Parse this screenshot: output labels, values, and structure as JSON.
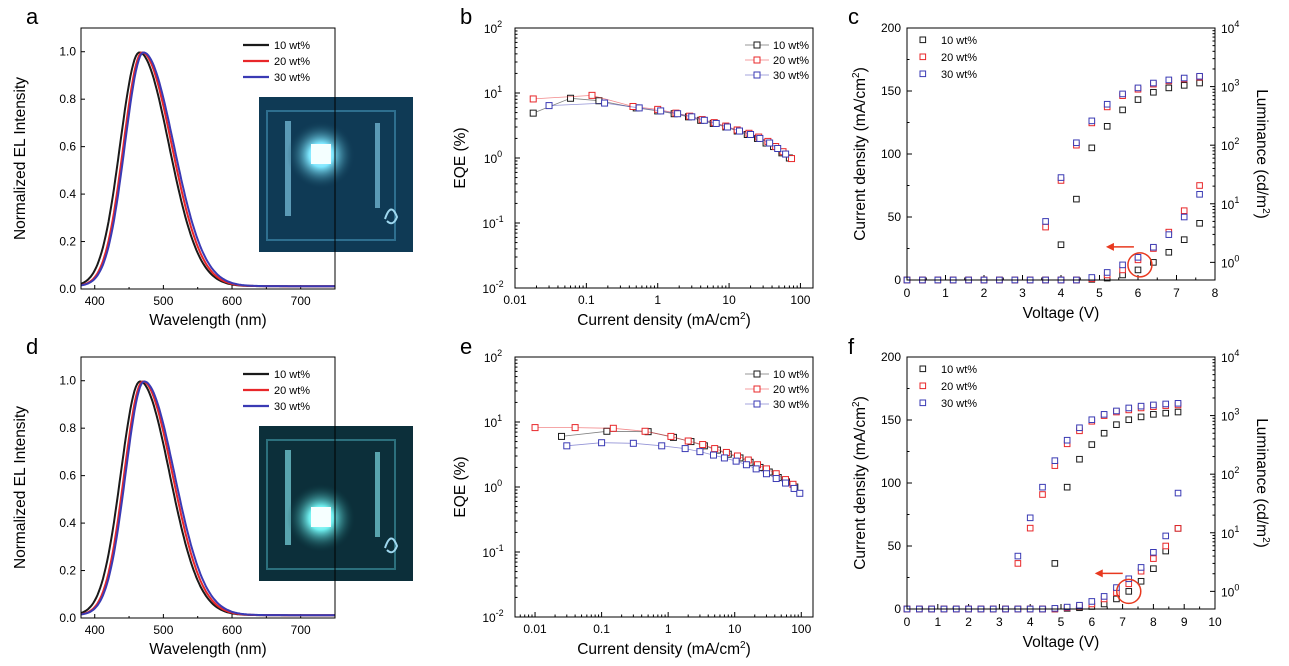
{
  "colors": {
    "s10": "#1a1a1a",
    "s20": "#e8272a",
    "s30": "#3a3ab4",
    "annotation": "#e8391f"
  },
  "chart_data": [
    {
      "panel": "a",
      "type": "line",
      "xlabel": "Wavelength (nm)",
      "ylabel": "Normalized EL Intensity",
      "xlim": [
        380,
        750
      ],
      "ylim": [
        0,
        1.1
      ],
      "xticks": [
        "400",
        "500",
        "600",
        "700"
      ],
      "yticks": [
        "0.0",
        "0.2",
        "0.4",
        "0.6",
        "0.8",
        "1.0"
      ],
      "legend_position": "top-right",
      "inset": "device-photo",
      "series": [
        {
          "name": "10 wt%",
          "color": "#1a1a1a",
          "peak": 465,
          "sigma_left": 28,
          "sigma_right": 43
        },
        {
          "name": "20 wt%",
          "color": "#e8272a",
          "peak": 469,
          "sigma_left": 27,
          "sigma_right": 43
        },
        {
          "name": "30 wt%",
          "color": "#3a3ab4",
          "peak": 471,
          "sigma_left": 27,
          "sigma_right": 44
        }
      ]
    },
    {
      "panel": "b",
      "type": "line",
      "xlabel": "Current density (mA/cm",
      "xlabel_sup": "2",
      "xlabel_end": ")",
      "ylabel": "EQE (%)",
      "xscale": "log",
      "yscale": "log",
      "xlim": [
        0.01,
        150
      ],
      "ylim": [
        0.01,
        100
      ],
      "xticks": [
        "0.01",
        "0.1",
        "1",
        "10",
        "100"
      ],
      "yticks_base": [
        "10",
        "10",
        "10",
        "10",
        "10"
      ],
      "yticks_exp": [
        "-2",
        "-1",
        "0",
        "1",
        "2"
      ],
      "legend_position": "top-right",
      "series": [
        {
          "name": "10 wt%",
          "color": "#1a1a1a",
          "x": [
            0.018,
            0.06,
            0.15,
            0.5,
            1,
            1.7,
            2.7,
            4,
            6,
            9,
            13,
            18,
            25,
            33,
            42,
            55,
            70
          ],
          "y": [
            4.9,
            8.3,
            7.6,
            5.9,
            5.3,
            4.8,
            4.3,
            3.8,
            3.4,
            3.0,
            2.6,
            2.3,
            2.0,
            1.7,
            1.5,
            1.2,
            1.0
          ]
        },
        {
          "name": "20 wt%",
          "color": "#e8272a",
          "x": [
            0.018,
            0.12,
            0.45,
            1,
            1.8,
            2.8,
            4.2,
            6.2,
            9,
            13,
            19,
            26,
            35,
            45,
            57,
            75
          ],
          "y": [
            8.1,
            9.2,
            6.2,
            5.6,
            4.9,
            4.4,
            3.9,
            3.5,
            3.1,
            2.7,
            2.4,
            2.1,
            1.8,
            1.5,
            1.25,
            0.98
          ]
        },
        {
          "name": "30 wt%",
          "color": "#3a3ab4",
          "x": [
            0.03,
            0.18,
            0.55,
            1.1,
            1.9,
            3,
            4.5,
            6.6,
            9.5,
            14,
            20,
            27,
            37,
            48,
            62
          ],
          "y": [
            6.4,
            7.0,
            5.9,
            5.3,
            4.8,
            4.3,
            3.8,
            3.4,
            3.0,
            2.6,
            2.3,
            2.0,
            1.7,
            1.4,
            1.15
          ]
        }
      ]
    },
    {
      "panel": "c",
      "type": "scatter",
      "xlabel": "Voltage (V)",
      "ylabel": "Current density (mA/cm",
      "ylabel_sup": "2",
      "ylabel_end": ")",
      "y2label": "Luminance (cd/m",
      "y2label_sup": "2",
      "y2label_end": ")",
      "xlim": [
        0,
        8
      ],
      "ylim": [
        0,
        200
      ],
      "y2scale": "log",
      "y2lim": [
        0.5,
        10000
      ],
      "xticks": [
        "0",
        "1",
        "2",
        "3",
        "4",
        "5",
        "6",
        "7",
        "8"
      ],
      "yticks": [
        "0",
        "50",
        "100",
        "150",
        "200"
      ],
      "y2ticks_base": [
        "10",
        "10",
        "10",
        "10",
        "10"
      ],
      "y2ticks_exp": [
        "0",
        "1",
        "2",
        "3",
        "4"
      ],
      "legend_position": "top-left",
      "arrow_annotation": "circle with arrow pointing to current density axis",
      "series": [
        {
          "name": "10 wt%",
          "color": "#1a1a1a",
          "x": [
            0,
            0.4,
            0.8,
            1.2,
            1.6,
            2,
            2.4,
            2.8,
            3.2,
            3.6,
            4,
            4.4,
            4.8,
            5.2,
            5.6,
            6,
            6.4,
            6.8,
            7.2,
            7.6
          ],
          "current": [
            0,
            0,
            0,
            0,
            0,
            0,
            0,
            0,
            0,
            0,
            0,
            0,
            0.5,
            1.5,
            4,
            8,
            14,
            22,
            32,
            45
          ],
          "luminance": [
            null,
            null,
            null,
            null,
            null,
            null,
            null,
            null,
            null,
            null,
            2,
            12,
            90,
            210,
            400,
            600,
            800,
            950,
            1050,
            1150
          ]
        },
        {
          "name": "20 wt%",
          "color": "#e8272a",
          "x": [
            0,
            0.4,
            0.8,
            1.2,
            1.6,
            2,
            2.4,
            2.8,
            3.2,
            3.6,
            4,
            4.4,
            4.8,
            5.2,
            5.6,
            6,
            6.4,
            6.8,
            7.2,
            7.6
          ],
          "current": [
            0,
            0,
            0,
            0,
            0,
            0,
            0,
            0,
            0,
            0,
            0,
            0,
            1,
            4,
            8,
            16,
            25,
            38,
            55,
            75
          ],
          "luminance": [
            null,
            null,
            null,
            null,
            null,
            null,
            null,
            null,
            null,
            4,
            25,
            100,
            240,
            450,
            700,
            900,
            1100,
            1250,
            1350,
            1450
          ]
        },
        {
          "name": "30 wt%",
          "color": "#3a3ab4",
          "x": [
            0,
            0.4,
            0.8,
            1.2,
            1.6,
            2,
            2.4,
            2.8,
            3.2,
            3.6,
            4,
            4.4,
            4.8,
            5.2,
            5.6,
            6,
            6.4,
            6.8,
            7.2,
            7.6
          ],
          "current": [
            0,
            0,
            0,
            0,
            0,
            0,
            0,
            0,
            0,
            0,
            0,
            0,
            2,
            6,
            12,
            18,
            26,
            36,
            50,
            68
          ],
          "luminance": [
            null,
            null,
            null,
            null,
            null,
            null,
            null,
            null,
            null,
            5,
            28,
            110,
            260,
            500,
            750,
            950,
            1150,
            1300,
            1400,
            1500
          ]
        }
      ]
    },
    {
      "panel": "d",
      "type": "line",
      "xlabel": "Wavelength (nm)",
      "ylabel": "Normalized EL Intensity",
      "xlim": [
        380,
        750
      ],
      "ylim": [
        0,
        1.1
      ],
      "xticks": [
        "400",
        "500",
        "600",
        "700"
      ],
      "yticks": [
        "0.0",
        "0.2",
        "0.4",
        "0.6",
        "0.8",
        "1.0"
      ],
      "legend_position": "top-right",
      "inset": "device-photo",
      "series": [
        {
          "name": "10 wt%",
          "color": "#1a1a1a",
          "peak": 466,
          "sigma_left": 28,
          "sigma_right": 43
        },
        {
          "name": "20 wt%",
          "color": "#e8272a",
          "peak": 470,
          "sigma_left": 27,
          "sigma_right": 43
        },
        {
          "name": "30 wt%",
          "color": "#3a3ab4",
          "peak": 472,
          "sigma_left": 27,
          "sigma_right": 44
        }
      ]
    },
    {
      "panel": "e",
      "type": "line",
      "xlabel": "Current density (mA/cm",
      "xlabel_sup": "2",
      "xlabel_end": ")",
      "ylabel": "EQE (%)",
      "xscale": "log",
      "yscale": "log",
      "xlim": [
        0.005,
        150
      ],
      "ylim": [
        0.01,
        100
      ],
      "xticks": [
        "0.01",
        "0.1",
        "1",
        "10",
        "100"
      ],
      "yticks_base": [
        "10",
        "10",
        "10",
        "10",
        "10"
      ],
      "yticks_exp": [
        "-2",
        "-1",
        "0",
        "1",
        "2"
      ],
      "legend_position": "top-right",
      "series": [
        {
          "name": "10 wt%",
          "color": "#1a1a1a",
          "x": [
            0.025,
            0.12,
            0.5,
            1.2,
            2.2,
            3.5,
            5.5,
            8,
            12,
            17,
            24,
            33,
            45,
            60,
            80
          ],
          "y": [
            6.0,
            7.2,
            7.1,
            5.8,
            5.0,
            4.3,
            3.7,
            3.2,
            2.8,
            2.4,
            2.0,
            1.7,
            1.4,
            1.2,
            1.0
          ]
        },
        {
          "name": "20 wt%",
          "color": "#e8272a",
          "x": [
            0.01,
            0.04,
            0.15,
            0.45,
            1.1,
            2,
            3.3,
            5,
            7.5,
            11,
            16,
            22,
            30,
            42,
            58,
            75
          ],
          "y": [
            8.2,
            8.2,
            8.0,
            7.2,
            6.0,
            5.1,
            4.5,
            3.9,
            3.4,
            3.0,
            2.6,
            2.2,
            1.9,
            1.6,
            1.3,
            1.1
          ]
        },
        {
          "name": "30 wt%",
          "color": "#3a3ab4",
          "x": [
            0.03,
            0.1,
            0.3,
            0.8,
            1.8,
            3,
            4.8,
            7,
            10.5,
            15,
            21,
            30,
            42,
            58,
            78,
            95
          ],
          "y": [
            4.3,
            4.8,
            4.7,
            4.3,
            3.9,
            3.5,
            3.1,
            2.8,
            2.5,
            2.2,
            1.9,
            1.6,
            1.35,
            1.15,
            0.95,
            0.8
          ]
        }
      ]
    },
    {
      "panel": "f",
      "type": "scatter",
      "xlabel": "Voltage (V)",
      "ylabel": "Current density (mA/cm",
      "ylabel_sup": "2",
      "ylabel_end": ")",
      "y2label": "Luminance (cd/m",
      "y2label_sup": "2",
      "y2label_end": ")",
      "xlim": [
        0,
        10
      ],
      "ylim": [
        0,
        200
      ],
      "y2scale": "log",
      "y2lim": [
        0.5,
        10000
      ],
      "xticks": [
        "0",
        "1",
        "2",
        "3",
        "4",
        "5",
        "6",
        "7",
        "8",
        "9",
        "10"
      ],
      "yticks": [
        "0",
        "50",
        "100",
        "150",
        "200"
      ],
      "y2ticks_base": [
        "10",
        "10",
        "10",
        "10",
        "10"
      ],
      "y2ticks_exp": [
        "0",
        "1",
        "2",
        "3",
        "4"
      ],
      "legend_position": "top-left",
      "arrow_annotation": "circle with arrow pointing to current density axis",
      "series": [
        {
          "name": "10 wt%",
          "color": "#1a1a1a",
          "x": [
            0,
            0.4,
            0.8,
            1.2,
            1.6,
            2,
            2.4,
            2.8,
            3.2,
            3.6,
            4,
            4.4,
            4.8,
            5.2,
            5.6,
            6,
            6.4,
            6.8,
            7.2,
            7.6,
            8,
            8.4,
            8.8
          ],
          "current": [
            0,
            0,
            0,
            0,
            0,
            0,
            0,
            0,
            0,
            0,
            0,
            0,
            0,
            0.5,
            1,
            2,
            4,
            8,
            14,
            22,
            32,
            46,
            64
          ],
          "luminance": [
            null,
            null,
            null,
            null,
            null,
            null,
            null,
            null,
            null,
            null,
            null,
            null,
            3,
            60,
            180,
            320,
            500,
            700,
            850,
            950,
            1050,
            1100,
            1150
          ]
        },
        {
          "name": "20 wt%",
          "color": "#e8272a",
          "x": [
            0,
            0.4,
            0.8,
            1.2,
            1.6,
            2,
            2.4,
            2.8,
            3.2,
            3.6,
            4,
            4.4,
            4.8,
            5.2,
            5.6,
            6,
            6.4,
            6.8,
            7.2,
            7.6,
            8,
            8.4,
            8.8
          ],
          "current": [
            0,
            0,
            0,
            0,
            0,
            0,
            0,
            0,
            0,
            0,
            0,
            0,
            0,
            1,
            2,
            4,
            8,
            13,
            20,
            30,
            40,
            50,
            64
          ],
          "luminance": [
            null,
            null,
            null,
            null,
            null,
            null,
            null,
            null,
            null,
            3,
            12,
            45,
            140,
            330,
            550,
            800,
            1000,
            1150,
            1250,
            1350,
            1420,
            1480,
            1520
          ]
        },
        {
          "name": "30 wt%",
          "color": "#3a3ab4",
          "x": [
            0,
            0.4,
            0.8,
            1.2,
            1.6,
            2,
            2.4,
            2.8,
            3.2,
            3.6,
            4,
            4.4,
            4.8,
            5.2,
            5.6,
            6,
            6.4,
            6.8,
            7.2,
            7.6,
            8,
            8.4,
            8.8
          ],
          "current": [
            0,
            0,
            0,
            0,
            0,
            0,
            0,
            0,
            0,
            0,
            0,
            0,
            0.5,
            1.5,
            3,
            6,
            10,
            17,
            24,
            33,
            45,
            58,
            92
          ],
          "luminance": [
            null,
            null,
            null,
            null,
            null,
            null,
            null,
            null,
            null,
            4,
            18,
            60,
            170,
            380,
            620,
            850,
            1050,
            1200,
            1350,
            1450,
            1520,
            1580,
            1620
          ]
        }
      ]
    }
  ]
}
